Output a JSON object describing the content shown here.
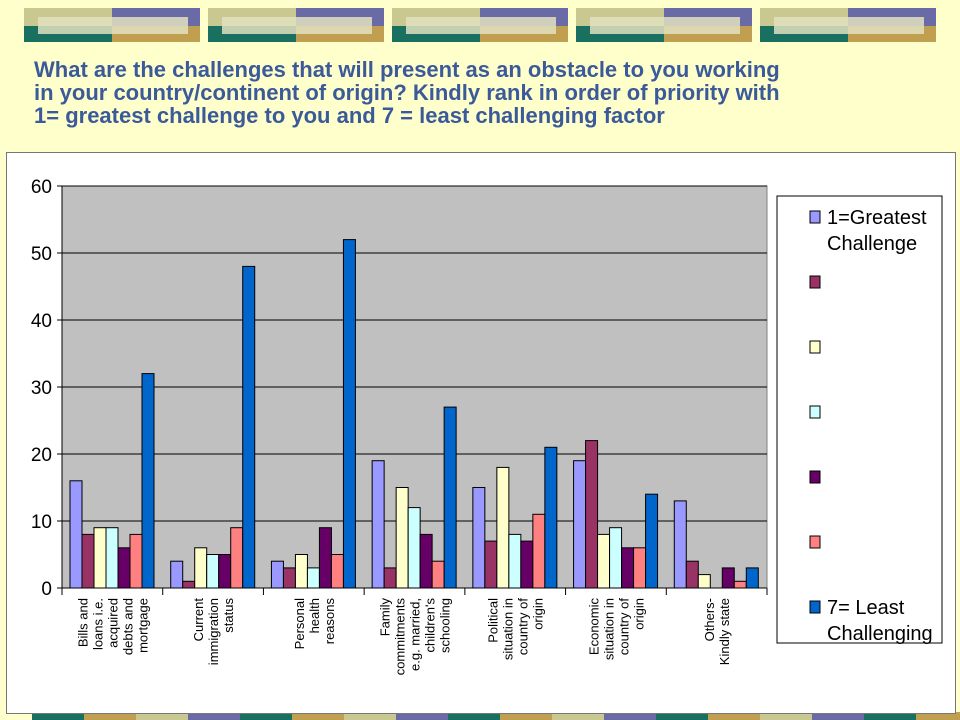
{
  "page": {
    "title_lines": [
      "What are the challenges that will present as an obstacle to you working",
      "in your country/continent of origin? Kindly rank in order of priority with",
      "1= greatest challenge to you and 7 = least challenging factor"
    ],
    "decor_colors": [
      "#c8c890",
      "#6a6aa6",
      "#1a7060",
      "#c0a050",
      "#e0e0c0"
    ]
  },
  "chart_data": {
    "type": "bar",
    "title": "",
    "xlabel": "",
    "ylabel": "",
    "ylim": [
      0,
      60
    ],
    "yticks": [
      0,
      10,
      20,
      30,
      40,
      50,
      60
    ],
    "grid": true,
    "legend_position": "right",
    "categories": [
      [
        "Bills and",
        "loans i.e.",
        "acquired",
        "debts and",
        "mortgage"
      ],
      [
        "Current",
        "immigration",
        "status"
      ],
      [
        "Personal",
        "health",
        "reasons"
      ],
      [
        "Family",
        "commitments",
        "e.g. married,",
        "children's",
        "schooling"
      ],
      [
        "Political",
        "situation in",
        "country of",
        "origin"
      ],
      [
        "Economic",
        "situation in",
        "country of",
        "origin"
      ],
      [
        "Others-",
        "Kindly state"
      ]
    ],
    "series": [
      {
        "name": [
          "1=Greatest",
          "Challenge"
        ],
        "color": "#9999ff",
        "values": [
          16,
          4,
          4,
          19,
          15,
          19,
          13
        ]
      },
      {
        "name": [],
        "color": "#993366",
        "values": [
          8,
          1,
          3,
          3,
          7,
          22,
          4
        ]
      },
      {
        "name": [],
        "color": "#ffffcc",
        "values": [
          9,
          6,
          5,
          15,
          18,
          8,
          2
        ]
      },
      {
        "name": [],
        "color": "#ccffff",
        "values": [
          9,
          5,
          3,
          12,
          8,
          9,
          0
        ]
      },
      {
        "name": [],
        "color": "#660066",
        "values": [
          6,
          5,
          9,
          8,
          7,
          6,
          3
        ]
      },
      {
        "name": [],
        "color": "#ff8080",
        "values": [
          8,
          9,
          5,
          4,
          11,
          6,
          1
        ]
      },
      {
        "name": [
          "7= Least",
          "Challenging"
        ],
        "color": "#0066cc",
        "values": [
          32,
          48,
          52,
          27,
          21,
          14,
          3
        ]
      }
    ],
    "plot_background": "#c0c0c0"
  }
}
